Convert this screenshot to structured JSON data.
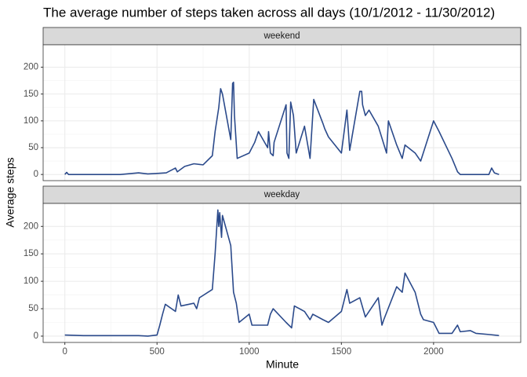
{
  "chart_data": {
    "type": "line",
    "title": "The average number of steps taken across all days (10/1/2012 - 11/30/2012)",
    "x_label": "Minute",
    "y_label": "Average steps",
    "color": "#2b4a8b",
    "grid": true,
    "xlim": [
      -117.75,
      2472.75
    ],
    "ylim": [
      -11.5,
      241.9
    ],
    "xticks": [
      0,
      500,
      1000,
      1500,
      2000
    ],
    "yticks": [
      0,
      50,
      100,
      150,
      200
    ],
    "facets": [
      {
        "name": "weekend",
        "x": [
          0,
          10,
          20,
          300,
          400,
          450,
          500,
          550,
          600,
          610,
          650,
          700,
          750,
          800,
          815,
          835,
          845,
          855,
          900,
          910,
          915,
          920,
          935,
          1000,
          1030,
          1050,
          1100,
          1105,
          1115,
          1130,
          1135,
          1200,
          1205,
          1215,
          1225,
          1240,
          1255,
          1300,
          1330,
          1350,
          1400,
          1410,
          1430,
          1500,
          1530,
          1545,
          1600,
          1610,
          1615,
          1630,
          1650,
          1700,
          1745,
          1755,
          1800,
          1830,
          1845,
          1900,
          1930,
          2000,
          2030,
          2100,
          2130,
          2145,
          2200,
          2300,
          2315,
          2330,
          2355
        ],
        "values": [
          0,
          4,
          0,
          0,
          3,
          1,
          2,
          3,
          12,
          5,
          15,
          20,
          18,
          35,
          80,
          125,
          160,
          150,
          65,
          170,
          172,
          110,
          30,
          40,
          60,
          80,
          50,
          80,
          40,
          35,
          60,
          130,
          40,
          30,
          135,
          110,
          40,
          90,
          30,
          140,
          95,
          85,
          70,
          40,
          120,
          45,
          155,
          155,
          130,
          110,
          120,
          90,
          40,
          100,
          55,
          30,
          55,
          40,
          25,
          100,
          80,
          30,
          5,
          0,
          0,
          0,
          12,
          3,
          0
        ]
      },
      {
        "name": "weekday",
        "x": [
          0,
          100,
          300,
          400,
          450,
          500,
          515,
          530,
          545,
          600,
          615,
          630,
          700,
          715,
          730,
          800,
          815,
          830,
          835,
          840,
          850,
          855,
          900,
          915,
          930,
          945,
          1000,
          1015,
          1100,
          1115,
          1130,
          1200,
          1230,
          1245,
          1300,
          1330,
          1345,
          1400,
          1430,
          1500,
          1530,
          1545,
          1600,
          1630,
          1700,
          1720,
          1730,
          1800,
          1830,
          1845,
          1900,
          1930,
          1945,
          2000,
          2030,
          2100,
          2130,
          2145,
          2200,
          2230,
          2300,
          2355
        ],
        "values": [
          2,
          1,
          1,
          1,
          0,
          2,
          20,
          40,
          58,
          45,
          75,
          55,
          60,
          50,
          70,
          85,
          150,
          230,
          200,
          225,
          180,
          220,
          165,
          80,
          60,
          25,
          40,
          20,
          20,
          40,
          50,
          25,
          15,
          55,
          45,
          30,
          40,
          30,
          25,
          45,
          85,
          60,
          70,
          35,
          70,
          20,
          30,
          90,
          80,
          115,
          80,
          40,
          30,
          25,
          5,
          5,
          20,
          8,
          10,
          5,
          3,
          1
        ]
      }
    ]
  }
}
